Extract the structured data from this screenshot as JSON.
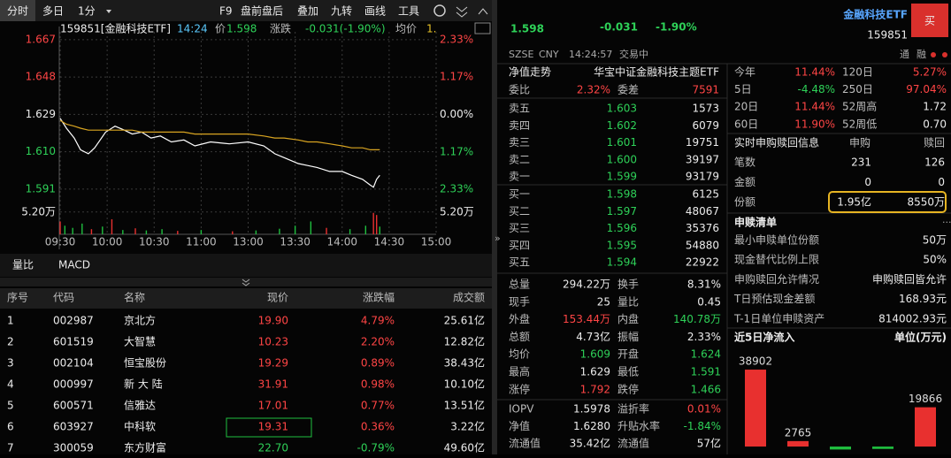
{
  "toolbar": {
    "left": [
      "分时",
      "多日",
      "1分"
    ],
    "right": [
      "F9",
      "盘前盘后",
      "叠加",
      "九转",
      "画线",
      "工具"
    ]
  },
  "intraday_header": {
    "code": "159851[金融科技ETF]",
    "time": "14:24",
    "price_label": "价",
    "price": "1.598",
    "change_label": "涨跌",
    "change": "-0.031(-1.90%)",
    "avg_label": "均价",
    "avg": "1."
  },
  "indicator_tabs": [
    "量比",
    "MACD"
  ],
  "watchlist": {
    "headers": [
      "序号",
      "代码",
      "名称",
      "现价",
      "涨跌幅",
      "成交额"
    ],
    "rows": [
      [
        "1",
        "002987",
        "京北方",
        "19.90",
        "4.79%",
        "25.61亿"
      ],
      [
        "2",
        "601519",
        "大智慧",
        "10.23",
        "2.20%",
        "12.82亿"
      ],
      [
        "3",
        "002104",
        "恒宝股份",
        "19.29",
        "0.89%",
        "38.43亿"
      ],
      [
        "4",
        "000997",
        "新 大 陆",
        "31.91",
        "0.98%",
        "10.10亿"
      ],
      [
        "5",
        "600571",
        "信雅达",
        "17.01",
        "0.77%",
        "13.51亿"
      ],
      [
        "6",
        "603927",
        "中科软",
        "19.31",
        "0.36%",
        "3.22亿"
      ],
      [
        "7",
        "300059",
        "东方财富",
        "22.70",
        "-0.79%",
        "49.60亿"
      ]
    ]
  },
  "quote": {
    "price": "1.598",
    "change": "-0.031",
    "pct": "-1.90%",
    "name": "金融科技ETF",
    "code": "159851",
    "buy": "买",
    "exchange": "SZSE",
    "currency": "CNY",
    "time": "14:24:57",
    "status": "交易中",
    "badges": [
      "通",
      "融"
    ]
  },
  "orderbook": {
    "nav_label": "净值走势",
    "fund_name": "华宝中证金融科技主题ETF",
    "ratio_label": "委比",
    "ratio": "2.32%",
    "diff_label": "委差",
    "diff": "7591",
    "asks": [
      [
        "卖五",
        "1.603",
        "1573"
      ],
      [
        "卖四",
        "1.602",
        "6079"
      ],
      [
        "卖三",
        "1.601",
        "19751"
      ],
      [
        "卖二",
        "1.600",
        "39197"
      ],
      [
        "卖一",
        "1.599",
        "93179"
      ]
    ],
    "bids": [
      [
        "买一",
        "1.598",
        "6125"
      ],
      [
        "买二",
        "1.597",
        "48067"
      ],
      [
        "买三",
        "1.596",
        "35376"
      ],
      [
        "买四",
        "1.595",
        "54880"
      ],
      [
        "买五",
        "1.594",
        "22922"
      ]
    ]
  },
  "stats": [
    [
      "总量",
      "294.22万",
      "换手",
      "8.31%"
    ],
    [
      "现手",
      "25",
      "量比",
      "0.45"
    ],
    [
      "外盘",
      "153.44万",
      "内盘",
      "140.78万"
    ],
    [
      "总额",
      "4.73亿",
      "振幅",
      "2.33%"
    ],
    [
      "均价",
      "1.609",
      "开盘",
      "1.624"
    ],
    [
      "最高",
      "1.629",
      "最低",
      "1.591"
    ],
    [
      "涨停",
      "1.792",
      "跌停",
      "1.466"
    ]
  ],
  "nav_stats": [
    [
      "IOPV",
      "1.5978",
      "溢折率",
      "0.01%"
    ],
    [
      "净值",
      "1.6280",
      "升贴水率",
      "-1.84%"
    ],
    [
      "流通值",
      "35.42亿",
      "流通值",
      "57亿"
    ]
  ],
  "performance": [
    [
      "今年",
      "11.44%",
      "120日",
      "5.27%"
    ],
    [
      "5日",
      "-4.48%",
      "250日",
      "97.04%"
    ],
    [
      "20日",
      "11.44%",
      "52周高",
      "1.72"
    ],
    [
      "60日",
      "11.90%",
      "52周低",
      "0.70"
    ]
  ],
  "redemption": {
    "headers": [
      "实时申购赎回信息",
      "申购",
      "赎回"
    ],
    "rows": [
      [
        "笔数",
        "231",
        "126"
      ],
      [
        "金额",
        "0",
        "0"
      ],
      [
        "份额",
        "1.95亿",
        "8550万"
      ]
    ]
  },
  "list": {
    "title": "申赎清单",
    "rows": [
      [
        "最小申赎单位份额",
        "50万"
      ],
      [
        "现金替代比例上限",
        "50%"
      ],
      [
        "申购赎回允许情况",
        "申购赎回皆允许"
      ],
      [
        "T日预估现金差额",
        "168.93元"
      ],
      [
        "T-1日单位申赎资产",
        "814002.93元"
      ]
    ]
  },
  "inflow": {
    "title": "近5日净流入",
    "unit": "单位(万元)"
  },
  "chart_data": [
    {
      "type": "line",
      "x": [
        0,
        4,
        9,
        13,
        18,
        22,
        29,
        35,
        41,
        46,
        52,
        58,
        64,
        71,
        79,
        86,
        96,
        108,
        120,
        130,
        137,
        143,
        152,
        158,
        164,
        172,
        180,
        186,
        193,
        198,
        200,
        202,
        204
      ],
      "xlim": [
        0,
        240
      ],
      "xticks": [
        {
          "value": 0,
          "label": "09:30"
        },
        {
          "value": 30,
          "label": "10:00"
        },
        {
          "value": 60,
          "label": "10:30"
        },
        {
          "value": 90,
          "label": "11:00"
        },
        {
          "value": 120,
          "label": "13:00"
        },
        {
          "value": 150,
          "label": "13:30"
        },
        {
          "value": 180,
          "label": "14:00"
        },
        {
          "value": 210,
          "label": "14:30"
        },
        {
          "value": 240,
          "label": "15:00"
        }
      ],
      "series": [
        {
          "color": "#ffffff",
          "values": [
            1.627,
            1.622,
            1.617,
            1.611,
            1.609,
            1.612,
            1.62,
            1.623,
            1.621,
            1.619,
            1.62,
            1.617,
            1.618,
            1.615,
            1.616,
            1.613,
            1.615,
            1.614,
            1.615,
            1.613,
            1.609,
            1.607,
            1.604,
            1.603,
            1.602,
            1.6,
            1.6,
            1.598,
            1.596,
            1.593,
            1.592,
            1.596,
            1.598
          ]
        },
        {
          "color": "#d9a521",
          "values": [
            1.626,
            1.624,
            1.623,
            1.622,
            1.621,
            1.621,
            1.621,
            1.621,
            1.621,
            1.621,
            1.62,
            1.62,
            1.62,
            1.62,
            1.62,
            1.619,
            1.619,
            1.619,
            1.619,
            1.618,
            1.617,
            1.617,
            1.616,
            1.615,
            1.615,
            1.614,
            1.613,
            1.612,
            1.612,
            1.611,
            1.611,
            1.611,
            1.611
          ]
        }
      ],
      "ylim": [
        1.586,
        1.671
      ],
      "yticks": [
        1.591,
        {
          "value": 1.61,
          "label": "1.610"
        },
        1.629,
        1.648,
        1.667
      ],
      "y2lim": [
        -2.64,
        2.58
      ],
      "y2ticks": [
        {
          "value": -2.33,
          "label": "2.33%"
        },
        {
          "value": -1.17,
          "label": "1.17%"
        },
        {
          "value": 0,
          "label": "0.00%"
        },
        {
          "value": 1.17,
          "label": "1.17%"
        },
        {
          "value": 2.33,
          "label": "2.33%"
        }
      ],
      "grid": true,
      "volume": {
        "x": [
          0,
          3,
          8,
          14,
          20,
          27,
          33,
          40,
          48,
          55,
          65,
          75,
          90,
          110,
          125,
          140,
          150,
          160,
          170,
          185,
          195,
          200,
          202,
          204
        ],
        "values": [
          30000,
          20000,
          15000,
          25000,
          12000,
          18000,
          35000,
          10000,
          14000,
          9000,
          12000,
          8000,
          10000,
          7000,
          9000,
          13000,
          20000,
          30000,
          15000,
          12000,
          20000,
          50000,
          45000,
          18000
        ],
        "colors": [
          "#e8302f",
          "#1fbf3f",
          "#1fbf3f",
          "#1fbf3f",
          "#e8302f",
          "#1fbf3f",
          "#e8302f",
          "#1fbf3f",
          "#e8302f",
          "#1fbf3f",
          "#1fbf3f",
          "#e8302f",
          "#1fbf3f",
          "#e8302f",
          "#1fbf3f",
          "#1fbf3f",
          "#1fbf3f",
          "#1fbf3f",
          "#e8302f",
          "#1fbf3f",
          "#1fbf3f",
          "#e8302f",
          "#e8302f",
          "#1fbf3f"
        ],
        "ylim": [
          0,
          68000
        ],
        "yticks": [
          {
            "value": 52000,
            "label": "5.20万"
          }
        ]
      }
    },
    {
      "type": "bar",
      "categories": [
        null,
        null,
        null,
        null,
        null
      ],
      "values": [
        38902,
        2765,
        -1500,
        -1200,
        19866
      ],
      "value_labels": [
        "38902",
        "2765",
        null,
        null,
        "19866"
      ],
      "colors": [
        "#e8302f",
        "#e8302f",
        "#1fbf3f",
        "#1fbf3f",
        "#e8302f"
      ],
      "ylim": [
        -4000,
        42500
      ]
    }
  ]
}
